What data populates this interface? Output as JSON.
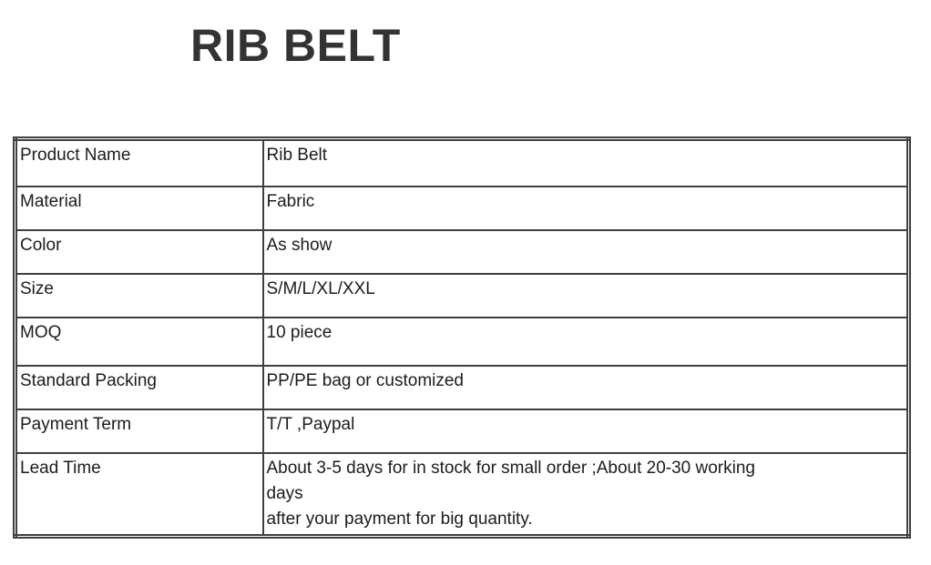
{
  "page": {
    "title": "RIB BELT"
  },
  "spec_table": {
    "rows": [
      {
        "label": "Product Name",
        "value": "Rib Belt"
      },
      {
        "label": "Material",
        "value": "Fabric"
      },
      {
        "label": "Color",
        "value": "As show"
      },
      {
        "label": "Size",
        "value": "S/M/L/XL/XXL"
      },
      {
        "label": "MOQ",
        "value": "10 piece"
      },
      {
        "label": "Standard Packing",
        "value": "PP/PE bag or customized"
      },
      {
        "label": "Payment Term",
        "value": "T/T ,Paypal"
      },
      {
        "label": "Lead Time",
        "value": "About 3-5 days for in stock for small order ;About 20-30 working\ndays\nafter your payment for big quantity."
      }
    ]
  },
  "colors": {
    "background": "#ffffff",
    "title_text": "#333333",
    "body_text": "#1c1c1c",
    "table_border": "#404040"
  }
}
